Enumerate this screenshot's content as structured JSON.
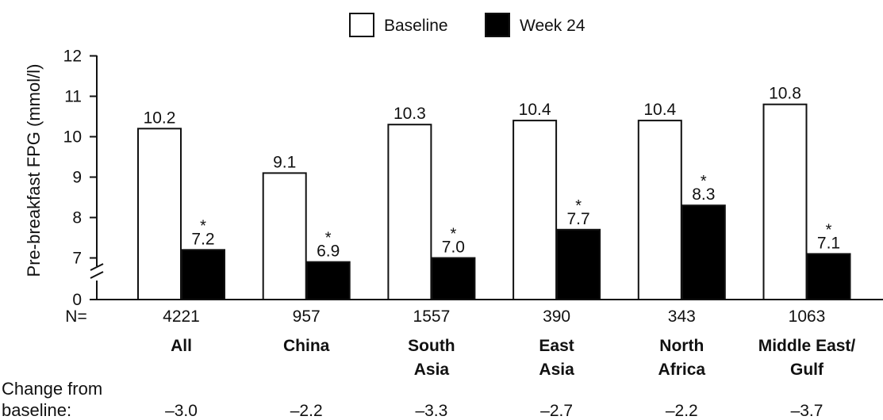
{
  "chart_data": {
    "type": "bar",
    "ylabel": "Pre-breakfast FPG (mmol/l)",
    "ylim": [
      6,
      12
    ],
    "yticks": [
      "0",
      "7",
      "8",
      "9",
      "10",
      "11",
      "12"
    ],
    "axis_break": true,
    "legend_position": "top-center",
    "series": [
      {
        "name": "Baseline",
        "color": "#ffffff",
        "values": [
          10.2,
          9.1,
          10.3,
          10.4,
          10.4,
          10.8
        ],
        "labels": [
          "10.2",
          "9.1",
          "10.3",
          "10.4",
          "10.4",
          "10.8"
        ]
      },
      {
        "name": "Week 24",
        "color": "#000000",
        "values": [
          7.2,
          6.9,
          7.0,
          7.7,
          8.3,
          7.1
        ],
        "labels": [
          "7.2",
          "6.9",
          "7.0",
          "7.7",
          "8.3",
          "7.1"
        ],
        "significance_marker": "*"
      }
    ],
    "categories": [
      [
        "All"
      ],
      [
        "China"
      ],
      [
        "South",
        "Asia"
      ],
      [
        "East",
        "Asia"
      ],
      [
        "North",
        "Africa"
      ],
      [
        "Middle East/",
        "Gulf"
      ]
    ],
    "n_label": "N=",
    "n_values": [
      "4221",
      "957",
      "1557",
      "390",
      "343",
      "1063"
    ],
    "change_label": [
      "Change from",
      "baseline:"
    ],
    "change_values": [
      "–3.0",
      "–2.2",
      "–3.3",
      "–2.7",
      "–2.2",
      "–3.7"
    ]
  }
}
